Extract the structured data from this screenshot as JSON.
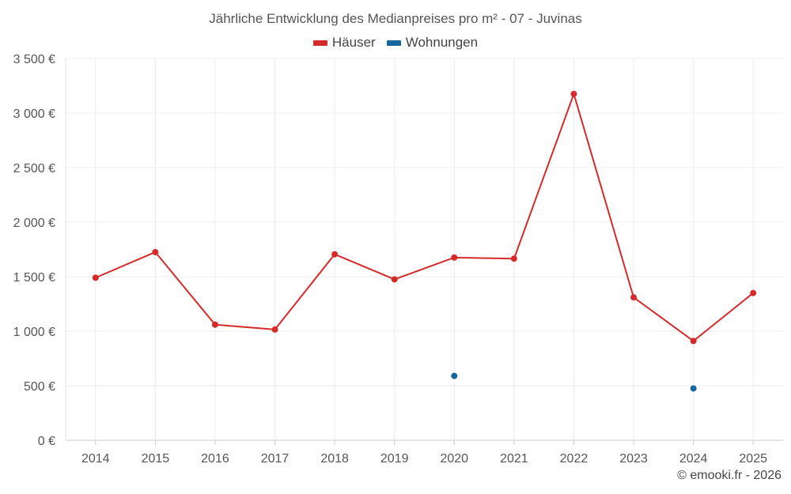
{
  "chart_data": {
    "type": "line",
    "title": "Jährliche Entwicklung des Medianpreises pro m² - 07 - Juvinas",
    "categories": [
      "2014",
      "2015",
      "2016",
      "2017",
      "2018",
      "2019",
      "2020",
      "2021",
      "2022",
      "2023",
      "2024",
      "2025"
    ],
    "series": [
      {
        "name": "Häuser",
        "color": "#d42a2a",
        "values": [
          1490,
          1725,
          1060,
          1015,
          1705,
          1475,
          1675,
          1665,
          3175,
          1310,
          910,
          1350
        ]
      },
      {
        "name": "Wohnungen",
        "color": "#1565a0",
        "values": [
          null,
          null,
          null,
          null,
          null,
          null,
          590,
          null,
          null,
          null,
          475,
          null
        ]
      }
    ],
    "y_ticks": [
      0,
      500,
      1000,
      1500,
      2000,
      2500,
      3000,
      3500
    ],
    "y_tick_labels": [
      "0 €",
      "500 €",
      "1 000 €",
      "1 500 €",
      "2 000 €",
      "2 500 €",
      "3 000 €",
      "3 500 €"
    ],
    "ylim": [
      0,
      3500
    ],
    "xlabel": "",
    "ylabel": "",
    "grid": true,
    "legend_position": "top-center"
  },
  "footer": {
    "credit": "© emooki.fr - 2026"
  }
}
